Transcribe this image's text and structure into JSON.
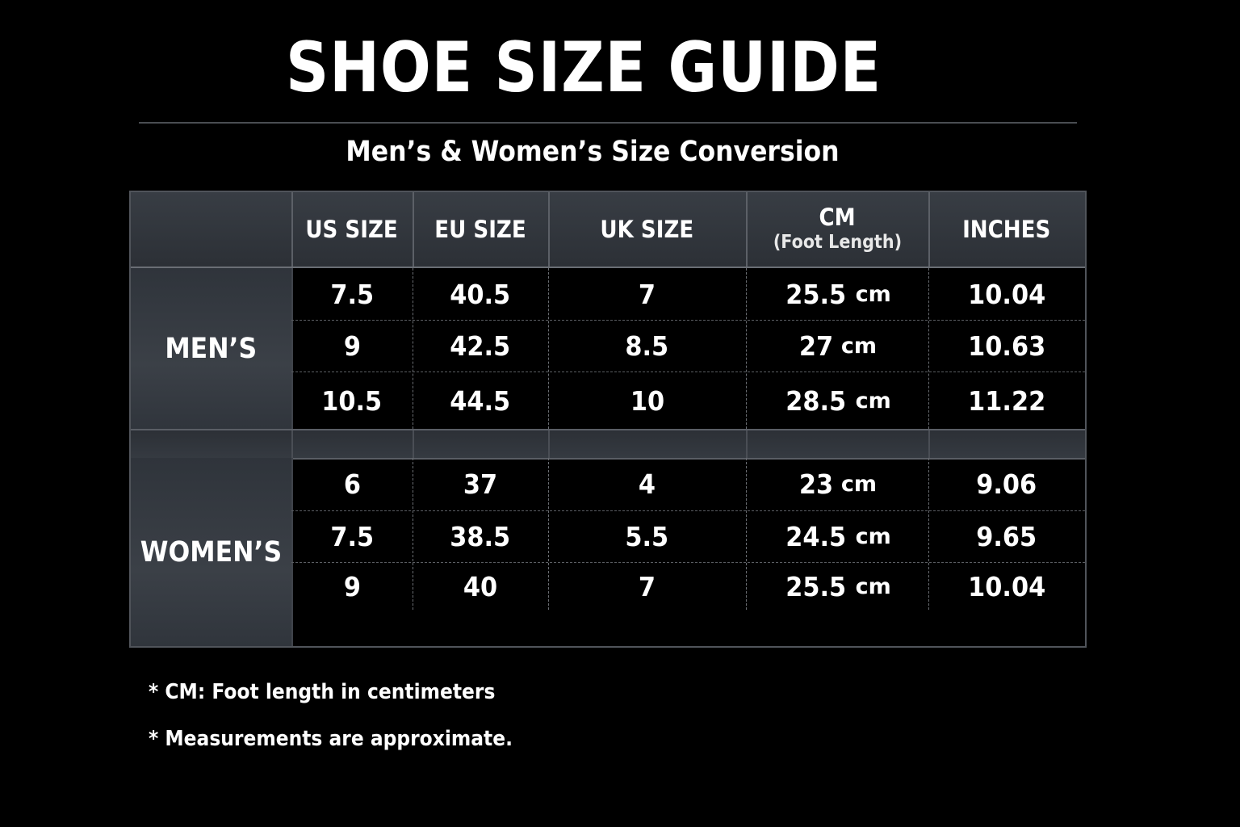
{
  "title": "SHOE SIZE GUIDE",
  "subtitle": "Men’s & Women’s Size Conversion",
  "table": {
    "headers": {
      "us": "US SIZE",
      "eu": "EU SIZE",
      "uk": "UK SIZE",
      "cm": "CM",
      "cm_sub": "(Foot Length)",
      "inches": "INCHES"
    },
    "unit_cm": "cm",
    "mens": {
      "label": "MEN’S",
      "rows": [
        {
          "us": "7.5",
          "eu": "40.5",
          "uk": "7",
          "cm": "25.5",
          "inches": "10.04"
        },
        {
          "us": "9",
          "eu": "42.5",
          "uk": "8.5",
          "cm": "27",
          "inches": "10.63"
        },
        {
          "us": "10.5",
          "eu": "44.5",
          "uk": "10",
          "cm": "28.5",
          "inches": "11.22"
        }
      ]
    },
    "womens": {
      "label": "WOMEN’S",
      "rows": [
        {
          "us": "6",
          "eu": "37",
          "uk": "4",
          "cm": "23",
          "inches": "9.06"
        },
        {
          "us": "7.5",
          "eu": "38.5",
          "uk": "5.5",
          "cm": "24.5",
          "inches": "9.65"
        },
        {
          "us": "9",
          "eu": "40",
          "uk": "7",
          "cm": "25.5",
          "inches": "10.04"
        }
      ]
    }
  },
  "footnotes": {
    "cm_note": "* CM: Foot length in centimeters",
    "approx_note": "* Measurements are approximate."
  }
}
